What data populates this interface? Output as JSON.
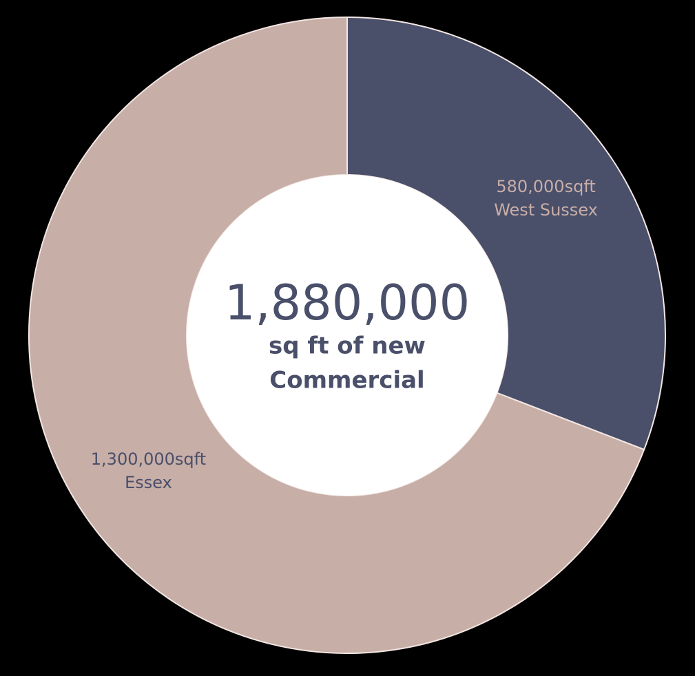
{
  "chart_data": {
    "type": "donut",
    "categories": [
      "West Sussex",
      "Essex"
    ],
    "values": [
      580000,
      1300000
    ],
    "value_labels": [
      "580,000sqft",
      "1,300,000sqft"
    ],
    "colors": [
      "#4a4f6a",
      "#c7aea7"
    ],
    "label_colors": [
      "#c7aea7",
      "#4a4f6a"
    ],
    "center_title": "1,880,000",
    "center_caption": [
      "sq ft of new",
      "Commercial"
    ]
  }
}
